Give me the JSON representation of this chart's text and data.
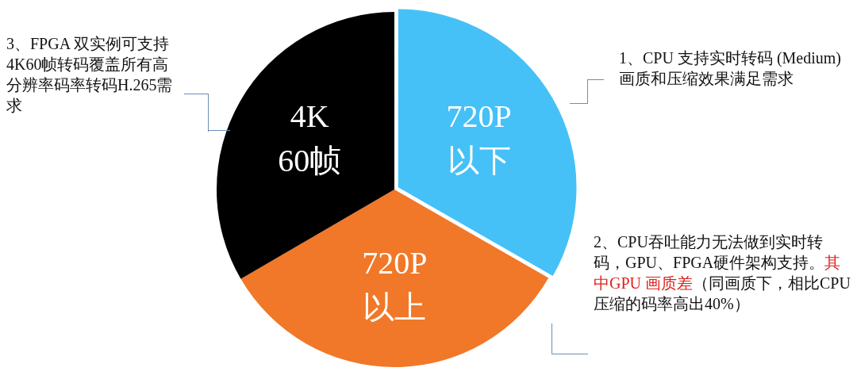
{
  "chart_data": {
    "type": "pie",
    "categories": [
      "720P 以下",
      "720P 以上",
      "4K 60帧"
    ],
    "values": [
      33.3,
      33.3,
      33.4
    ],
    "colors": [
      "#45c1f7",
      "#f07828",
      "#000000"
    ],
    "legend": false,
    "annotations": [
      "1、CPU 支持实时转码 (Medium) 画质和压缩效果满足需求",
      "2、CPU吞吐能力无法做到实时转码，GPU、FPGA硬件架构支持。",
      "其中GPU 画质差",
      "（同画质下，相比CPU压缩的码率高出40%）",
      "3、FPGA 双实例可支持4K60帧转码覆盖所有高分辨率码率转码H.265需求"
    ]
  }
}
